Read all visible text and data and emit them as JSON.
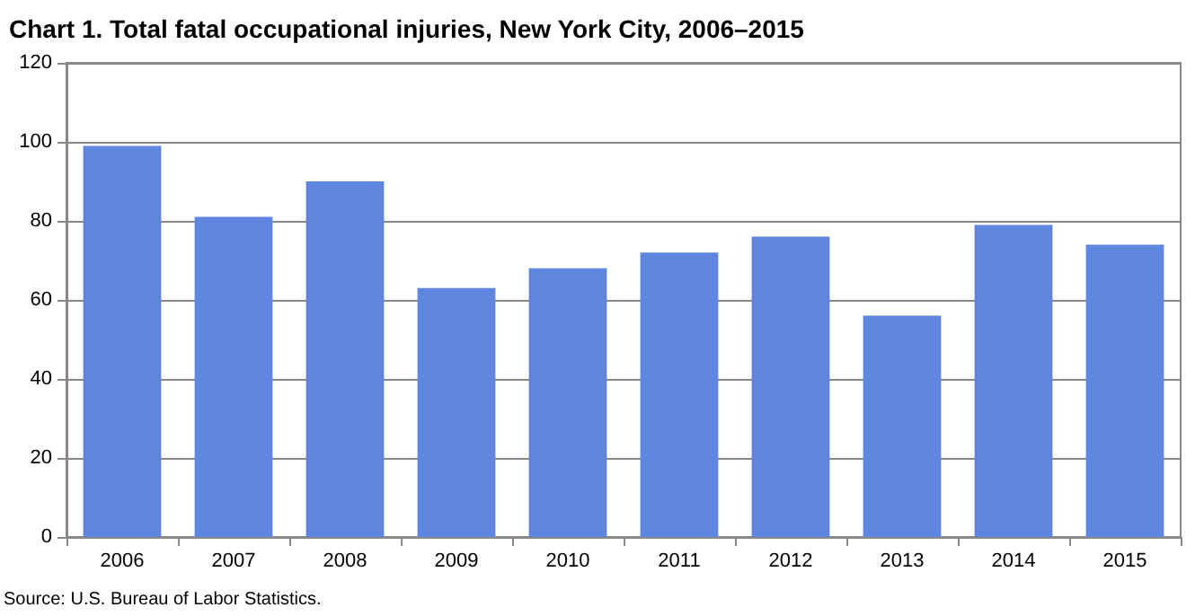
{
  "chart_data": {
    "type": "bar",
    "title": "Chart 1. Total fatal occupational injuries, New York City, 2006–2015",
    "categories": [
      "2006",
      "2007",
      "2008",
      "2009",
      "2010",
      "2011",
      "2012",
      "2013",
      "2014",
      "2015"
    ],
    "values": [
      99,
      81,
      90,
      63,
      68,
      72,
      76,
      56,
      79,
      74
    ],
    "color": "#5f86de",
    "ylim": [
      0,
      120
    ],
    "yticks": [
      0,
      20,
      40,
      60,
      80,
      100,
      120
    ],
    "grid": "y",
    "annotations": [
      "Source: U.S. Bureau of Labor Statistics."
    ]
  }
}
